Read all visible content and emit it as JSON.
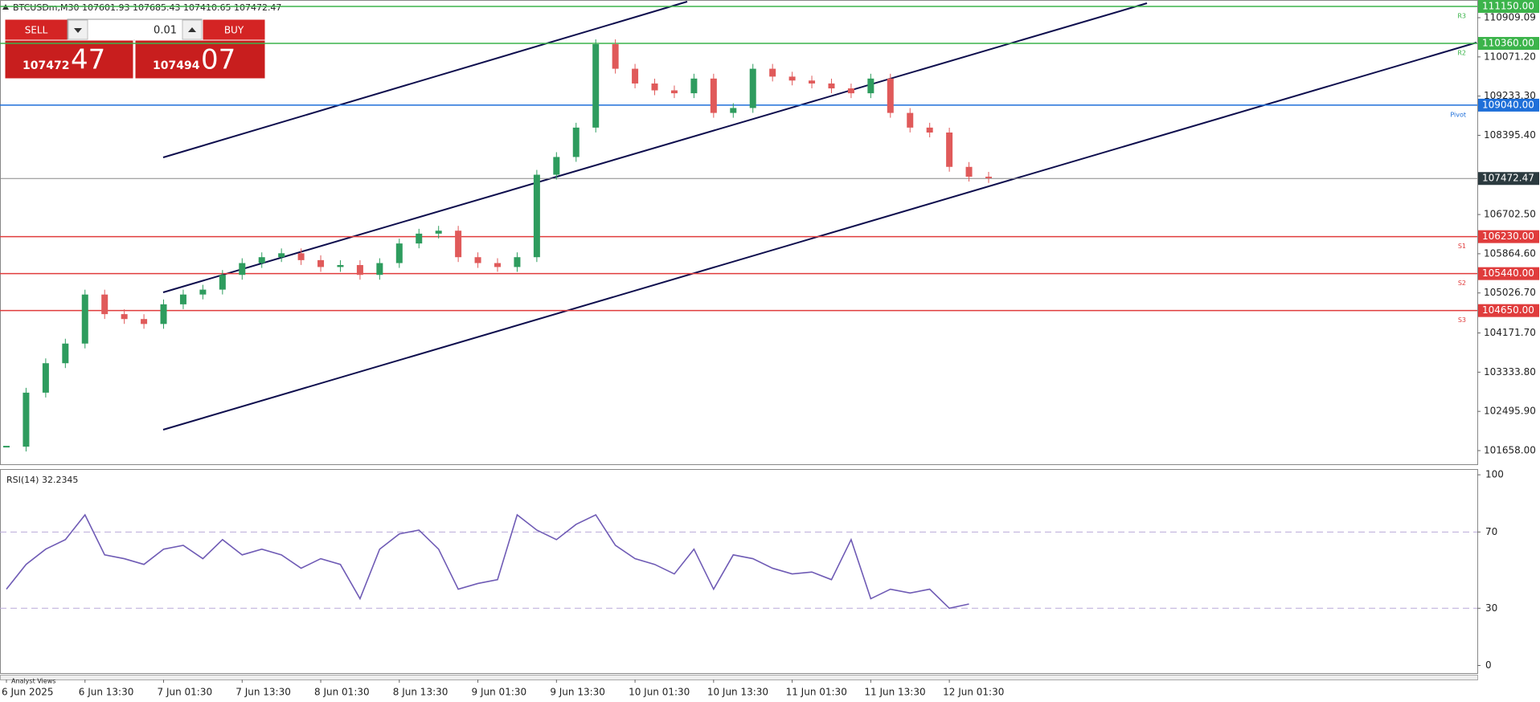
{
  "header": {
    "symbol_info": "BTCUSDm,M30  107601.93 107685.43 107410.65 107472.47"
  },
  "trade_panel": {
    "sell": "SELL",
    "buy": "BUY",
    "volume": "0.01",
    "bid_main": "107472",
    "bid_big": "47",
    "ask_main": "107494",
    "ask_big": "07"
  },
  "chart_data": {
    "type": "candlestick",
    "ylim": [
      101366,
      111287
    ],
    "yticks": [
      110909.09,
      {
        "value": 110071.2,
        "label": "110071.20"
      },
      {
        "value": 109233.3,
        "label": "109233.30"
      },
      {
        "value": 108395.4,
        "label": "108395.40"
      },
      {
        "value": 106702.5,
        "label": "106702.50"
      },
      {
        "value": 105864.6,
        "label": "105864.60"
      },
      {
        "value": 105026.7,
        "label": "105026.70"
      },
      {
        "value": 104171.7,
        "label": "104171.70"
      },
      {
        "value": 103333.8,
        "label": "103333.80"
      },
      {
        "value": 102495.9,
        "label": "102495.90"
      },
      {
        "value": 101658,
        "label": "101658.00"
      }
    ],
    "closes": [
      101742,
      102896,
      103525,
      103945,
      104993,
      104574,
      104469,
      104364,
      104784,
      104993,
      105098,
      105413,
      105665,
      105791,
      105875,
      105728,
      105581,
      105623,
      105413,
      105665,
      106084,
      106294,
      106357,
      105791,
      105665,
      105581,
      105791,
      107553,
      107932,
      108560,
      110343,
      109818,
      109503,
      109356,
      109294,
      109608,
      108874,
      108979,
      109818,
      109650,
      109566,
      109503,
      109398,
      109294,
      109608,
      108874,
      108560,
      108455,
      107721,
      107511,
      107480
    ],
    "up_color": "#2e9c5e",
    "down_color": "#e05a5a",
    "levels": [
      {
        "name": "R3",
        "value": 111150,
        "label": "111150.00",
        "color": "#3cb44b"
      },
      {
        "name": "R2",
        "value": 110360,
        "label": "110360.00",
        "color": "#3cb44b"
      },
      {
        "name": "Pivot",
        "value": 109040,
        "label": "109040.00",
        "color": "#1e6fd9"
      },
      {
        "name": "S1",
        "value": 106230,
        "label": "106230.00",
        "color": "#e03c3c"
      },
      {
        "name": "S2",
        "value": 105440,
        "label": "105440.00",
        "color": "#e03c3c"
      },
      {
        "name": "S3",
        "value": 104650,
        "label": "104650.00",
        "color": "#e03c3c"
      }
    ],
    "current_price": {
      "value": 107472.47,
      "label": "107472.47",
      "color": "#888888"
    },
    "time_labels": [
      "6 Jun 2025",
      "6 Jun 13:30",
      "7 Jun 01:30",
      "7 Jun 13:30",
      "8 Jun 01:30",
      "8 Jun 13:30",
      "9 Jun 01:30",
      "9 Jun 13:30",
      "10 Jun 01:30",
      "10 Jun 13:30",
      "11 Jun 01:30",
      "11 Jun 13:30",
      "12 Jun 01:30"
    ]
  },
  "rsi": {
    "title": "RSI(14) 32.2345",
    "ylim": [
      -4,
      103
    ],
    "yticks": [
      0,
      30,
      70,
      100
    ],
    "levels": [
      30,
      70
    ],
    "color": "#6f5bb5",
    "values": [
      40,
      53,
      61,
      66,
      79,
      58,
      56,
      53,
      61,
      63,
      56,
      66,
      58,
      61,
      58,
      51,
      56,
      53,
      35,
      61,
      69,
      71,
      61,
      40,
      43,
      45,
      79,
      71,
      66,
      74,
      79,
      63,
      56,
      53,
      48,
      61,
      40,
      58,
      56,
      51,
      48,
      49,
      45,
      66,
      35,
      40,
      38,
      40,
      30,
      32.2345
    ]
  },
  "footer": {
    "panel": "Analyst Views"
  }
}
